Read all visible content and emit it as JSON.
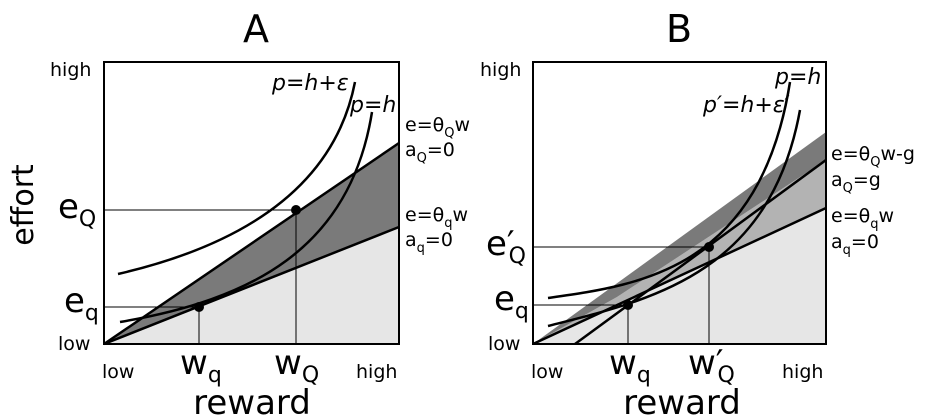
{
  "panel_a": {
    "letter": "A",
    "y_high": "high",
    "y_low": "low",
    "x_low": "low",
    "x_high": "high",
    "ylabel": "effort",
    "xlabel": "reward",
    "e_upper": {
      "base": "e",
      "sub": "Q"
    },
    "e_lower": {
      "base": "e",
      "sub": "q"
    },
    "w_lower": {
      "base": "w",
      "sub": "q"
    },
    "w_upper": {
      "base": "w",
      "sub": "Q"
    },
    "curve_upper": "p=h+ε",
    "curve_lower": "p=h",
    "line_upper": {
      "eq_pre": "e=θ",
      "eq_sub": "Q",
      "eq_post": "w",
      "a_pre": "a",
      "a_sub": "Q",
      "a_post": "=0"
    },
    "line_lower": {
      "eq_pre": "e=θ",
      "eq_sub": "q",
      "eq_post": "w",
      "a_pre": "a",
      "a_sub": "q",
      "a_post": "=0"
    }
  },
  "panel_b": {
    "letter": "B",
    "y_high": "high",
    "y_low": "low",
    "x_low": "low",
    "x_high": "high",
    "ylabel": "",
    "xlabel": "reward",
    "e_upper": {
      "base": "e′",
      "sub": "Q"
    },
    "e_lower": {
      "base": "e",
      "sub": "q"
    },
    "w_lower": {
      "base": "w",
      "sub": "q"
    },
    "w_upper": {
      "base": "w′",
      "sub": "Q"
    },
    "curve_upper": "p=h",
    "curve_lower": "p′=h+ε′",
    "line_upper": {
      "eq_pre": "e=θ",
      "eq_sub": "Q",
      "eq_post": "w-g",
      "a_pre": "a",
      "a_sub": "Q",
      "a_post": "=g"
    },
    "line_lower": {
      "eq_pre": "e=θ",
      "eq_sub": "q",
      "eq_post": "w",
      "a_pre": "a",
      "a_sub": "q",
      "a_post": "=0"
    }
  },
  "colors": {
    "region_dark": "#7a7a7a",
    "region_mid": "#b3b3b3",
    "region_light": "#e6e6e6",
    "ink": "#000000"
  }
}
